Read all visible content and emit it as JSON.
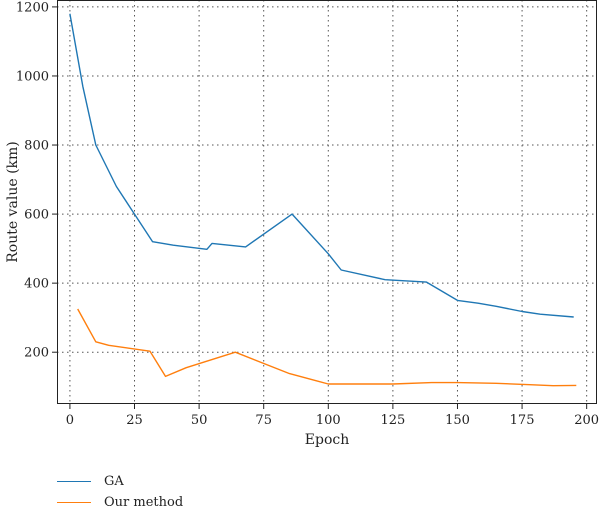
{
  "chart_data": {
    "type": "line",
    "title": "",
    "xlabel": "Epoch",
    "ylabel": "Route value (km)",
    "xlim": [
      -5,
      204
    ],
    "ylim": [
      50,
      1220
    ],
    "x_ticks": [
      0,
      25,
      50,
      75,
      100,
      125,
      150,
      175,
      200
    ],
    "y_ticks": [
      200,
      400,
      600,
      800,
      1000,
      1200
    ],
    "grid": true,
    "legend_position": "bottom-left, below plot",
    "series": [
      {
        "name": "GA",
        "color": "#1f77b4",
        "x": [
          0,
          5,
          10,
          18,
          25,
          32,
          40,
          53,
          55,
          68,
          86,
          100,
          105,
          122,
          138,
          150,
          158,
          165,
          175,
          182,
          195
        ],
        "y": [
          1180,
          970,
          800,
          680,
          600,
          520,
          510,
          498,
          515,
          505,
          600,
          485,
          438,
          410,
          403,
          350,
          342,
          333,
          318,
          310,
          302
        ]
      },
      {
        "name": "Our method",
        "color": "#ff7f0e",
        "x": [
          3,
          10,
          15,
          31,
          37,
          45,
          64,
          85,
          100,
          110,
          125,
          140,
          150,
          165,
          178,
          187,
          196
        ],
        "y": [
          325,
          230,
          220,
          203,
          130,
          155,
          200,
          138,
          108,
          108,
          108,
          112,
          112,
          110,
          106,
          103,
          104
        ]
      }
    ]
  }
}
